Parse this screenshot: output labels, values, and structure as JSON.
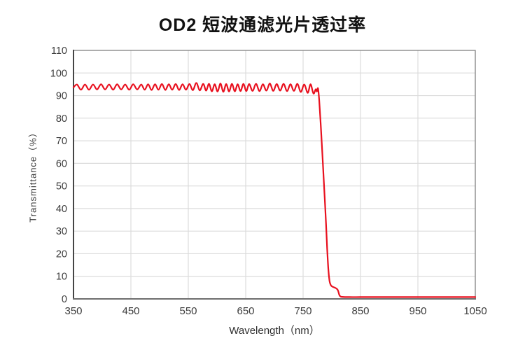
{
  "title": "OD2 短波通滤光片透过率",
  "colors": {
    "background": "#ffffff",
    "line": "#e8101e",
    "grid": "#dcdcdc",
    "border": "#8a8a8a",
    "axis_left": "#454545",
    "axis_bottom": "#6e6e6e",
    "tick_text": "#3c3c3c",
    "title_text": "#111111"
  },
  "chart_data": {
    "type": "line",
    "title": "OD2 短波通滤光片透过率",
    "xlabel": "Wavelength（nm）",
    "ylabel": "Transmittance（%）",
    "xlim": [
      350,
      1050
    ],
    "ylim": [
      0,
      110
    ],
    "x_ticks": [
      350,
      450,
      550,
      650,
      750,
      850,
      950,
      1050
    ],
    "y_ticks": [
      0,
      10,
      20,
      30,
      40,
      50,
      60,
      70,
      80,
      90,
      100,
      110
    ],
    "grid": true,
    "legend_position": "none",
    "series": [
      {
        "name": "transmittance",
        "color": "#e8101e",
        "points": [
          [
            350,
            93.6
          ],
          [
            356,
            94.9
          ],
          [
            363,
            92.6
          ],
          [
            370,
            94.9
          ],
          [
            377,
            92.6
          ],
          [
            384,
            94.9
          ],
          [
            391,
            92.7
          ],
          [
            398,
            95.0
          ],
          [
            405,
            92.7
          ],
          [
            412,
            94.9
          ],
          [
            419,
            92.6
          ],
          [
            426,
            95.0
          ],
          [
            433,
            92.7
          ],
          [
            440,
            94.9
          ],
          [
            447,
            92.6
          ],
          [
            454,
            95.0
          ],
          [
            461,
            92.7
          ],
          [
            468,
            94.9
          ],
          [
            474,
            92.6
          ],
          [
            480,
            95.0
          ],
          [
            486,
            92.5
          ],
          [
            492,
            95.0
          ],
          [
            498,
            92.6
          ],
          [
            504,
            95.1
          ],
          [
            510,
            92.5
          ],
          [
            516,
            95.0
          ],
          [
            522,
            92.6
          ],
          [
            528,
            95.1
          ],
          [
            534,
            92.5
          ],
          [
            540,
            95.0
          ],
          [
            546,
            92.6
          ],
          [
            552,
            95.1
          ],
          [
            558,
            92.4
          ],
          [
            564,
            95.6
          ],
          [
            570,
            92.3
          ],
          [
            576,
            95.2
          ],
          [
            581,
            92.2
          ],
          [
            586,
            95.2
          ],
          [
            591,
            91.9
          ],
          [
            596,
            95.0
          ],
          [
            601,
            91.8
          ],
          [
            606,
            95.3
          ],
          [
            611,
            91.7
          ],
          [
            616,
            95.1
          ],
          [
            621,
            91.8
          ],
          [
            626,
            95.2
          ],
          [
            631,
            91.9
          ],
          [
            636,
            95.0
          ],
          [
            641,
            92.0
          ],
          [
            646,
            95.2
          ],
          [
            651,
            92.0
          ],
          [
            656,
            95.1
          ],
          [
            662,
            92.1
          ],
          [
            668,
            95.2
          ],
          [
            674,
            92.0
          ],
          [
            680,
            95.0
          ],
          [
            686,
            92.2
          ],
          [
            692,
            95.3
          ],
          [
            698,
            92.1
          ],
          [
            704,
            95.1
          ],
          [
            710,
            92.2
          ],
          [
            716,
            95.2
          ],
          [
            722,
            92.0
          ],
          [
            728,
            95.0
          ],
          [
            734,
            92.1
          ],
          [
            740,
            95.2
          ],
          [
            746,
            91.6
          ],
          [
            752,
            94.9
          ],
          [
            758,
            91.2
          ],
          [
            763,
            95.0
          ],
          [
            768,
            90.9
          ],
          [
            772,
            92.8
          ],
          [
            774,
            91.8
          ],
          [
            776,
            93.2
          ],
          [
            778,
            88
          ],
          [
            781,
            76
          ],
          [
            784,
            62
          ],
          [
            787,
            48
          ],
          [
            790,
            33
          ],
          [
            792,
            22
          ],
          [
            794,
            13
          ],
          [
            796,
            8
          ],
          [
            798,
            6.2
          ],
          [
            800,
            5.6
          ],
          [
            803,
            5.2
          ],
          [
            806,
            4.9
          ],
          [
            809,
            4.4
          ],
          [
            811,
            3.6
          ],
          [
            813,
            1.8
          ],
          [
            815,
            1.1
          ],
          [
            818,
            0.9
          ],
          [
            830,
            0.8
          ],
          [
            850,
            0.8
          ],
          [
            875,
            0.8
          ],
          [
            900,
            0.8
          ],
          [
            925,
            0.8
          ],
          [
            950,
            0.8
          ],
          [
            975,
            0.8
          ],
          [
            1000,
            0.8
          ],
          [
            1025,
            0.8
          ],
          [
            1050,
            0.8
          ]
        ]
      }
    ]
  }
}
